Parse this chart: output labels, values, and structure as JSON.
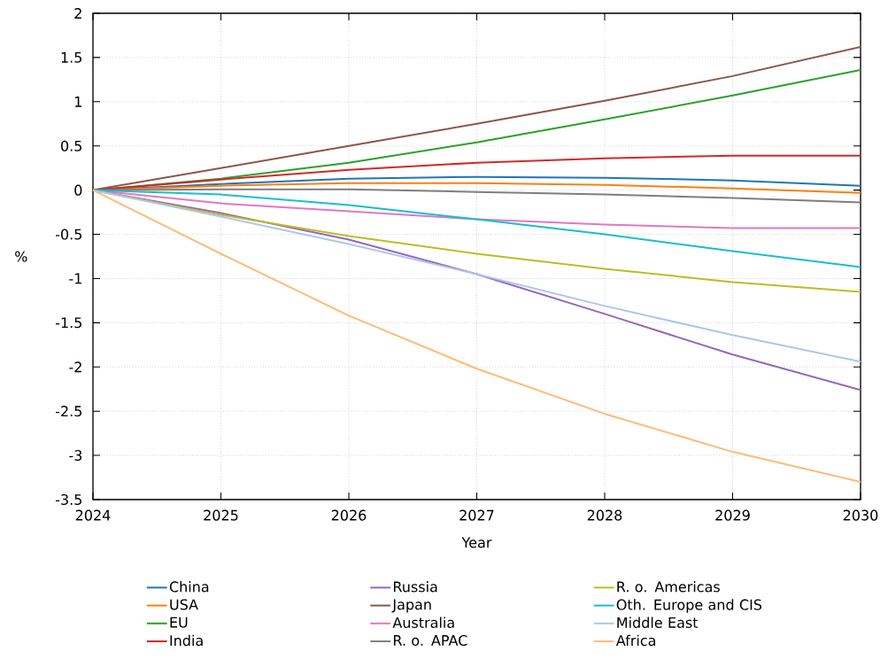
{
  "chart_data": {
    "type": "line",
    "xlabel": "Year",
    "ylabel": "%",
    "x": [
      2024,
      2025,
      2026,
      2027,
      2028,
      2029,
      2030
    ],
    "xlim": [
      2024,
      2030
    ],
    "ylim": [
      -3.5,
      2
    ],
    "xticks": [
      2024,
      2025,
      2026,
      2027,
      2028,
      2029,
      2030
    ],
    "yticks": [
      -3.5,
      -3,
      -2.5,
      -2,
      -1.5,
      -1,
      -0.5,
      0,
      0.5,
      1,
      1.5,
      2
    ],
    "grid": true,
    "legend": "bottom",
    "series": [
      {
        "name": "China",
        "color": "#1f77b4",
        "values": [
          0,
          0.07,
          0.13,
          0.15,
          0.14,
          0.11,
          0.05
        ]
      },
      {
        "name": "USA",
        "color": "#ff7f0e",
        "values": [
          0,
          0.05,
          0.08,
          0.08,
          0.06,
          0.02,
          -0.03
        ]
      },
      {
        "name": "EU",
        "color": "#2ca02c",
        "values": [
          0,
          0.13,
          0.31,
          0.54,
          0.8,
          1.07,
          1.36
        ]
      },
      {
        "name": "India",
        "color": "#d62728",
        "values": [
          0,
          0.12,
          0.23,
          0.31,
          0.36,
          0.39,
          0.39
        ]
      },
      {
        "name": "Russia",
        "color": "#9467bd",
        "values": [
          0,
          -0.26,
          -0.56,
          -0.95,
          -1.4,
          -1.86,
          -2.26
        ]
      },
      {
        "name": "Japan",
        "color": "#8c564b",
        "values": [
          0,
          0.25,
          0.5,
          0.75,
          1.01,
          1.29,
          1.62
        ]
      },
      {
        "name": "Australia",
        "color": "#e377c2",
        "values": [
          0,
          -0.15,
          -0.24,
          -0.33,
          -0.39,
          -0.43,
          -0.43
        ]
      },
      {
        "name": "R. o. APAC",
        "color": "#7f7f7f",
        "values": [
          0,
          0.01,
          0.01,
          -0.02,
          -0.05,
          -0.09,
          -0.14
        ]
      },
      {
        "name": "R. o. Americas",
        "color": "#bcbd22",
        "values": [
          0,
          -0.28,
          -0.52,
          -0.72,
          -0.89,
          -1.04,
          -1.15
        ]
      },
      {
        "name": "Oth. Europe and CIS",
        "color": "#17becf",
        "values": [
          0,
          -0.05,
          -0.17,
          -0.33,
          -0.5,
          -0.69,
          -0.87
        ]
      },
      {
        "name": "Middle East",
        "color": "#aec7e8",
        "values": [
          0,
          -0.3,
          -0.61,
          -0.95,
          -1.31,
          -1.64,
          -1.94
        ]
      },
      {
        "name": "Africa",
        "color": "#ffbb78",
        "values": [
          0,
          -0.72,
          -1.42,
          -2.02,
          -2.53,
          -2.96,
          -3.3
        ]
      }
    ]
  }
}
